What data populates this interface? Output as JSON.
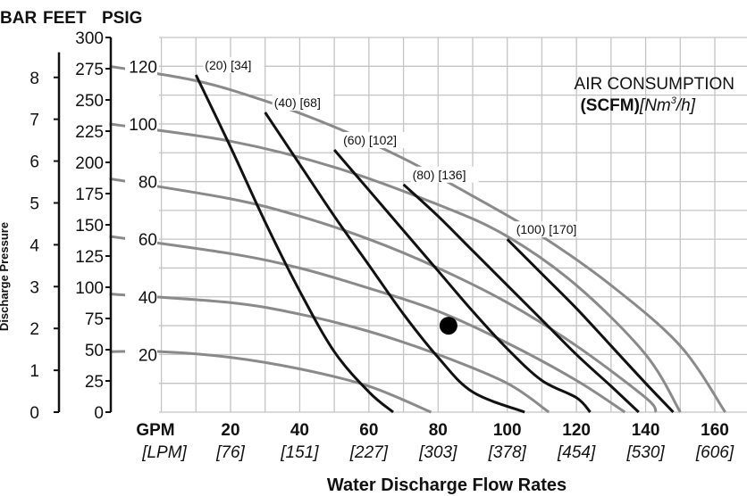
{
  "chart_data": {
    "type": "line",
    "header": {
      "units": [
        "BAR",
        "FEET",
        "PSIG"
      ]
    },
    "y_side_label": "Discharge Pressure",
    "xlabel": "Water Discharge Flow Rates",
    "x_unit_primary": "GPM",
    "x_unit_secondary": "[LPM]",
    "x_ticks": [
      {
        "gpm": "20",
        "lpm": "[76]"
      },
      {
        "gpm": "40",
        "lpm": "[151]"
      },
      {
        "gpm": "60",
        "lpm": "[227]"
      },
      {
        "gpm": "80",
        "lpm": "[303]"
      },
      {
        "gpm": "100",
        "lpm": "[378]"
      },
      {
        "gpm": "120",
        "lpm": "[454]"
      },
      {
        "gpm": "140",
        "lpm": "[530]"
      },
      {
        "gpm": "160",
        "lpm": "[606]"
      }
    ],
    "bar_ticks": [
      "0",
      "1",
      "2",
      "3",
      "4",
      "5",
      "6",
      "7",
      "8"
    ],
    "feet_ticks": [
      "0",
      "25",
      "50",
      "75",
      "100",
      "125",
      "150",
      "175",
      "200",
      "225",
      "250",
      "275",
      "300"
    ],
    "psig_ticks": [
      "20",
      "40",
      "60",
      "80",
      "100",
      "120"
    ],
    "xlim": [
      0,
      170
    ],
    "ylim_psig": [
      0,
      130
    ],
    "grid": true,
    "legend_title": "AIR CONSUMPTION",
    "legend_units_bold": "(SCFM)",
    "legend_units_italic": "[Nm",
    "legend_units_sup": "3",
    "legend_units_italic_end": "/h]",
    "air_consumption_labels": [
      {
        "text": "(20) [34]"
      },
      {
        "text": "(40) [68]"
      },
      {
        "text": "(60) [102]"
      },
      {
        "text": "(80) [136]"
      },
      {
        "text": "(100) [170]"
      }
    ],
    "pressure_curves": [
      {
        "points": [
          [
            -15,
            120
          ],
          [
            10,
            115
          ],
          [
            30,
            108
          ],
          [
            50,
            99
          ],
          [
            70,
            88
          ],
          [
            90,
            75
          ],
          [
            110,
            61
          ],
          [
            130,
            44
          ],
          [
            150,
            23
          ],
          [
            163,
            0
          ]
        ]
      },
      {
        "points": [
          [
            -15,
            100
          ],
          [
            20,
            94
          ],
          [
            50,
            85
          ],
          [
            80,
            72
          ],
          [
            100,
            61
          ],
          [
            120,
            44
          ],
          [
            140,
            20
          ],
          [
            150,
            0
          ]
        ]
      },
      {
        "points": [
          [
            -15,
            81
          ],
          [
            20,
            74
          ],
          [
            40,
            68
          ],
          [
            60,
            60
          ],
          [
            80,
            50
          ],
          [
            100,
            38
          ],
          [
            120,
            23
          ],
          [
            140,
            5
          ],
          [
            143,
            0
          ]
        ]
      },
      {
        "points": [
          [
            -15,
            61
          ],
          [
            20,
            55
          ],
          [
            40,
            50
          ],
          [
            60,
            43
          ],
          [
            80,
            35
          ],
          [
            100,
            24
          ],
          [
            120,
            11
          ],
          [
            134,
            0
          ]
        ]
      },
      {
        "points": [
          [
            -15,
            41
          ],
          [
            20,
            38
          ],
          [
            40,
            34
          ],
          [
            60,
            28
          ],
          [
            80,
            20
          ],
          [
            100,
            10
          ],
          [
            112,
            0
          ]
        ]
      },
      {
        "points": [
          [
            -15,
            21
          ],
          [
            0,
            21
          ],
          [
            20,
            19
          ],
          [
            40,
            15
          ],
          [
            60,
            9
          ],
          [
            78,
            0
          ]
        ]
      }
    ],
    "air_curves": [
      {
        "scfm": 20,
        "points": [
          [
            10,
            117
          ],
          [
            20,
            92
          ],
          [
            30,
            66
          ],
          [
            40,
            42
          ],
          [
            50,
            21
          ],
          [
            60,
            7
          ],
          [
            67,
            0
          ]
        ]
      },
      {
        "scfm": 40,
        "points": [
          [
            30,
            104
          ],
          [
            40,
            86
          ],
          [
            50,
            68
          ],
          [
            60,
            51
          ],
          [
            70,
            34
          ],
          [
            80,
            19
          ],
          [
            90,
            7
          ],
          [
            105,
            0
          ]
        ]
      },
      {
        "scfm": 60,
        "points": [
          [
            50,
            91
          ],
          [
            60,
            77
          ],
          [
            70,
            63
          ],
          [
            80,
            49
          ],
          [
            90,
            35
          ],
          [
            100,
            22
          ],
          [
            110,
            11
          ],
          [
            120,
            5
          ],
          [
            124,
            0
          ]
        ]
      },
      {
        "scfm": 80,
        "points": [
          [
            70,
            79
          ],
          [
            80,
            68
          ],
          [
            90,
            56
          ],
          [
            100,
            44
          ],
          [
            110,
            32
          ],
          [
            120,
            20
          ],
          [
            130,
            9
          ],
          [
            138,
            0
          ]
        ]
      },
      {
        "scfm": 100,
        "points": [
          [
            100,
            60
          ],
          [
            110,
            48
          ],
          [
            120,
            36
          ],
          [
            130,
            23
          ],
          [
            140,
            10
          ],
          [
            148,
            0
          ]
        ]
      }
    ],
    "operating_point": {
      "gpm": 83,
      "psig": 30
    }
  }
}
